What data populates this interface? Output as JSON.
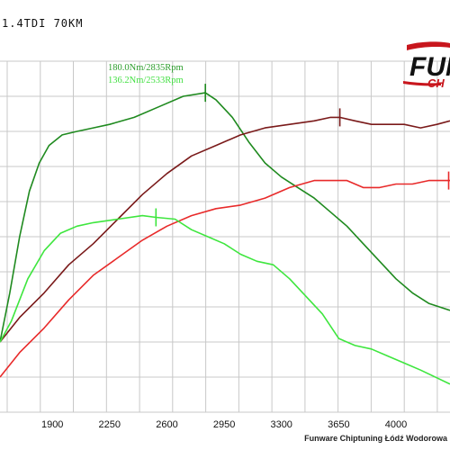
{
  "chart_data": {
    "type": "line",
    "title": "1.4TDI 70KM",
    "x_ticks": [
      1900,
      2250,
      2600,
      2950,
      3300,
      3650,
      4000
    ],
    "xlim": [
      1580,
      4330
    ],
    "ylim": [
      0,
      100
    ],
    "grid": true,
    "annotations": [
      {
        "text": "180.0Nm/2835Rpm",
        "color": "#2e9e2e"
      },
      {
        "text": "136.2Nm/2533Rpm",
        "color": "#44e044"
      }
    ],
    "series": [
      {
        "color": "#1f8a1f",
        "points": [
          [
            1580,
            20
          ],
          [
            1640,
            34
          ],
          [
            1700,
            50
          ],
          [
            1760,
            63
          ],
          [
            1820,
            71
          ],
          [
            1880,
            76
          ],
          [
            1960,
            79
          ],
          [
            2050,
            80
          ],
          [
            2150,
            81
          ],
          [
            2250,
            82
          ],
          [
            2400,
            84
          ],
          [
            2550,
            87
          ],
          [
            2700,
            90
          ],
          [
            2835,
            91
          ],
          [
            2900,
            89
          ],
          [
            3000,
            84
          ],
          [
            3100,
            77
          ],
          [
            3200,
            71
          ],
          [
            3300,
            67
          ],
          [
            3400,
            64
          ],
          [
            3500,
            61
          ],
          [
            3600,
            57
          ],
          [
            3700,
            53
          ],
          [
            3800,
            48
          ],
          [
            3900,
            43
          ],
          [
            4000,
            38
          ],
          [
            4100,
            34
          ],
          [
            4200,
            31
          ],
          [
            4330,
            29
          ]
        ]
      },
      {
        "color": "#7a1a1a",
        "points": [
          [
            1580,
            20
          ],
          [
            1700,
            27
          ],
          [
            1850,
            34
          ],
          [
            2000,
            42
          ],
          [
            2150,
            48
          ],
          [
            2300,
            55
          ],
          [
            2450,
            62
          ],
          [
            2600,
            68
          ],
          [
            2750,
            73
          ],
          [
            2900,
            76
          ],
          [
            3050,
            79
          ],
          [
            3200,
            81
          ],
          [
            3350,
            82
          ],
          [
            3500,
            83
          ],
          [
            3600,
            84
          ],
          [
            3657,
            84
          ],
          [
            3750,
            83
          ],
          [
            3850,
            82
          ],
          [
            3950,
            82
          ],
          [
            4050,
            82
          ],
          [
            4150,
            81
          ],
          [
            4250,
            82
          ],
          [
            4330,
            83
          ]
        ]
      },
      {
        "color": "#e82a2a",
        "points": [
          [
            1580,
            10
          ],
          [
            1700,
            17
          ],
          [
            1850,
            24
          ],
          [
            2000,
            32
          ],
          [
            2150,
            39
          ],
          [
            2300,
            44
          ],
          [
            2450,
            49
          ],
          [
            2600,
            53
          ],
          [
            2750,
            56
          ],
          [
            2900,
            58
          ],
          [
            3050,
            59
          ],
          [
            3200,
            61
          ],
          [
            3350,
            64
          ],
          [
            3500,
            66
          ],
          [
            3600,
            66
          ],
          [
            3700,
            66
          ],
          [
            3800,
            64
          ],
          [
            3900,
            64
          ],
          [
            4000,
            65
          ],
          [
            4100,
            65
          ],
          [
            4200,
            66
          ],
          [
            4330,
            66
          ]
        ]
      },
      {
        "color": "#3ee63e",
        "points": [
          [
            1580,
            20
          ],
          [
            1650,
            26
          ],
          [
            1750,
            38
          ],
          [
            1850,
            46
          ],
          [
            1950,
            51
          ],
          [
            2050,
            53
          ],
          [
            2150,
            54
          ],
          [
            2300,
            55
          ],
          [
            2450,
            56
          ],
          [
            2533,
            55.5
          ],
          [
            2650,
            55
          ],
          [
            2750,
            52
          ],
          [
            2850,
            50
          ],
          [
            2950,
            48
          ],
          [
            3050,
            45
          ],
          [
            3150,
            43
          ],
          [
            3250,
            42
          ],
          [
            3350,
            38
          ],
          [
            3450,
            33
          ],
          [
            3550,
            28
          ],
          [
            3650,
            21
          ],
          [
            3750,
            19
          ],
          [
            3850,
            18
          ],
          [
            3950,
            16
          ],
          [
            4050,
            14
          ],
          [
            4150,
            12
          ],
          [
            4330,
            8
          ]
        ]
      }
    ],
    "peak_markers": [
      {
        "color": "#1f8a1f",
        "x": 2835,
        "y": 91
      },
      {
        "color": "#7a1a1a",
        "x": 3657,
        "y": 84
      },
      {
        "color": "#3ee63e",
        "x": 2533,
        "y": 55.5
      },
      {
        "color": "#e82a2a",
        "x": 4330,
        "y": 66
      }
    ]
  },
  "logo": {
    "name": "FUNWARE",
    "visible_main": "FUN",
    "visible_sub": "CH",
    "colors": {
      "main": "#111111",
      "accent": "#c8161d"
    }
  },
  "footer": {
    "text": "Funware Chiptuning Łódź Wodorowa"
  }
}
